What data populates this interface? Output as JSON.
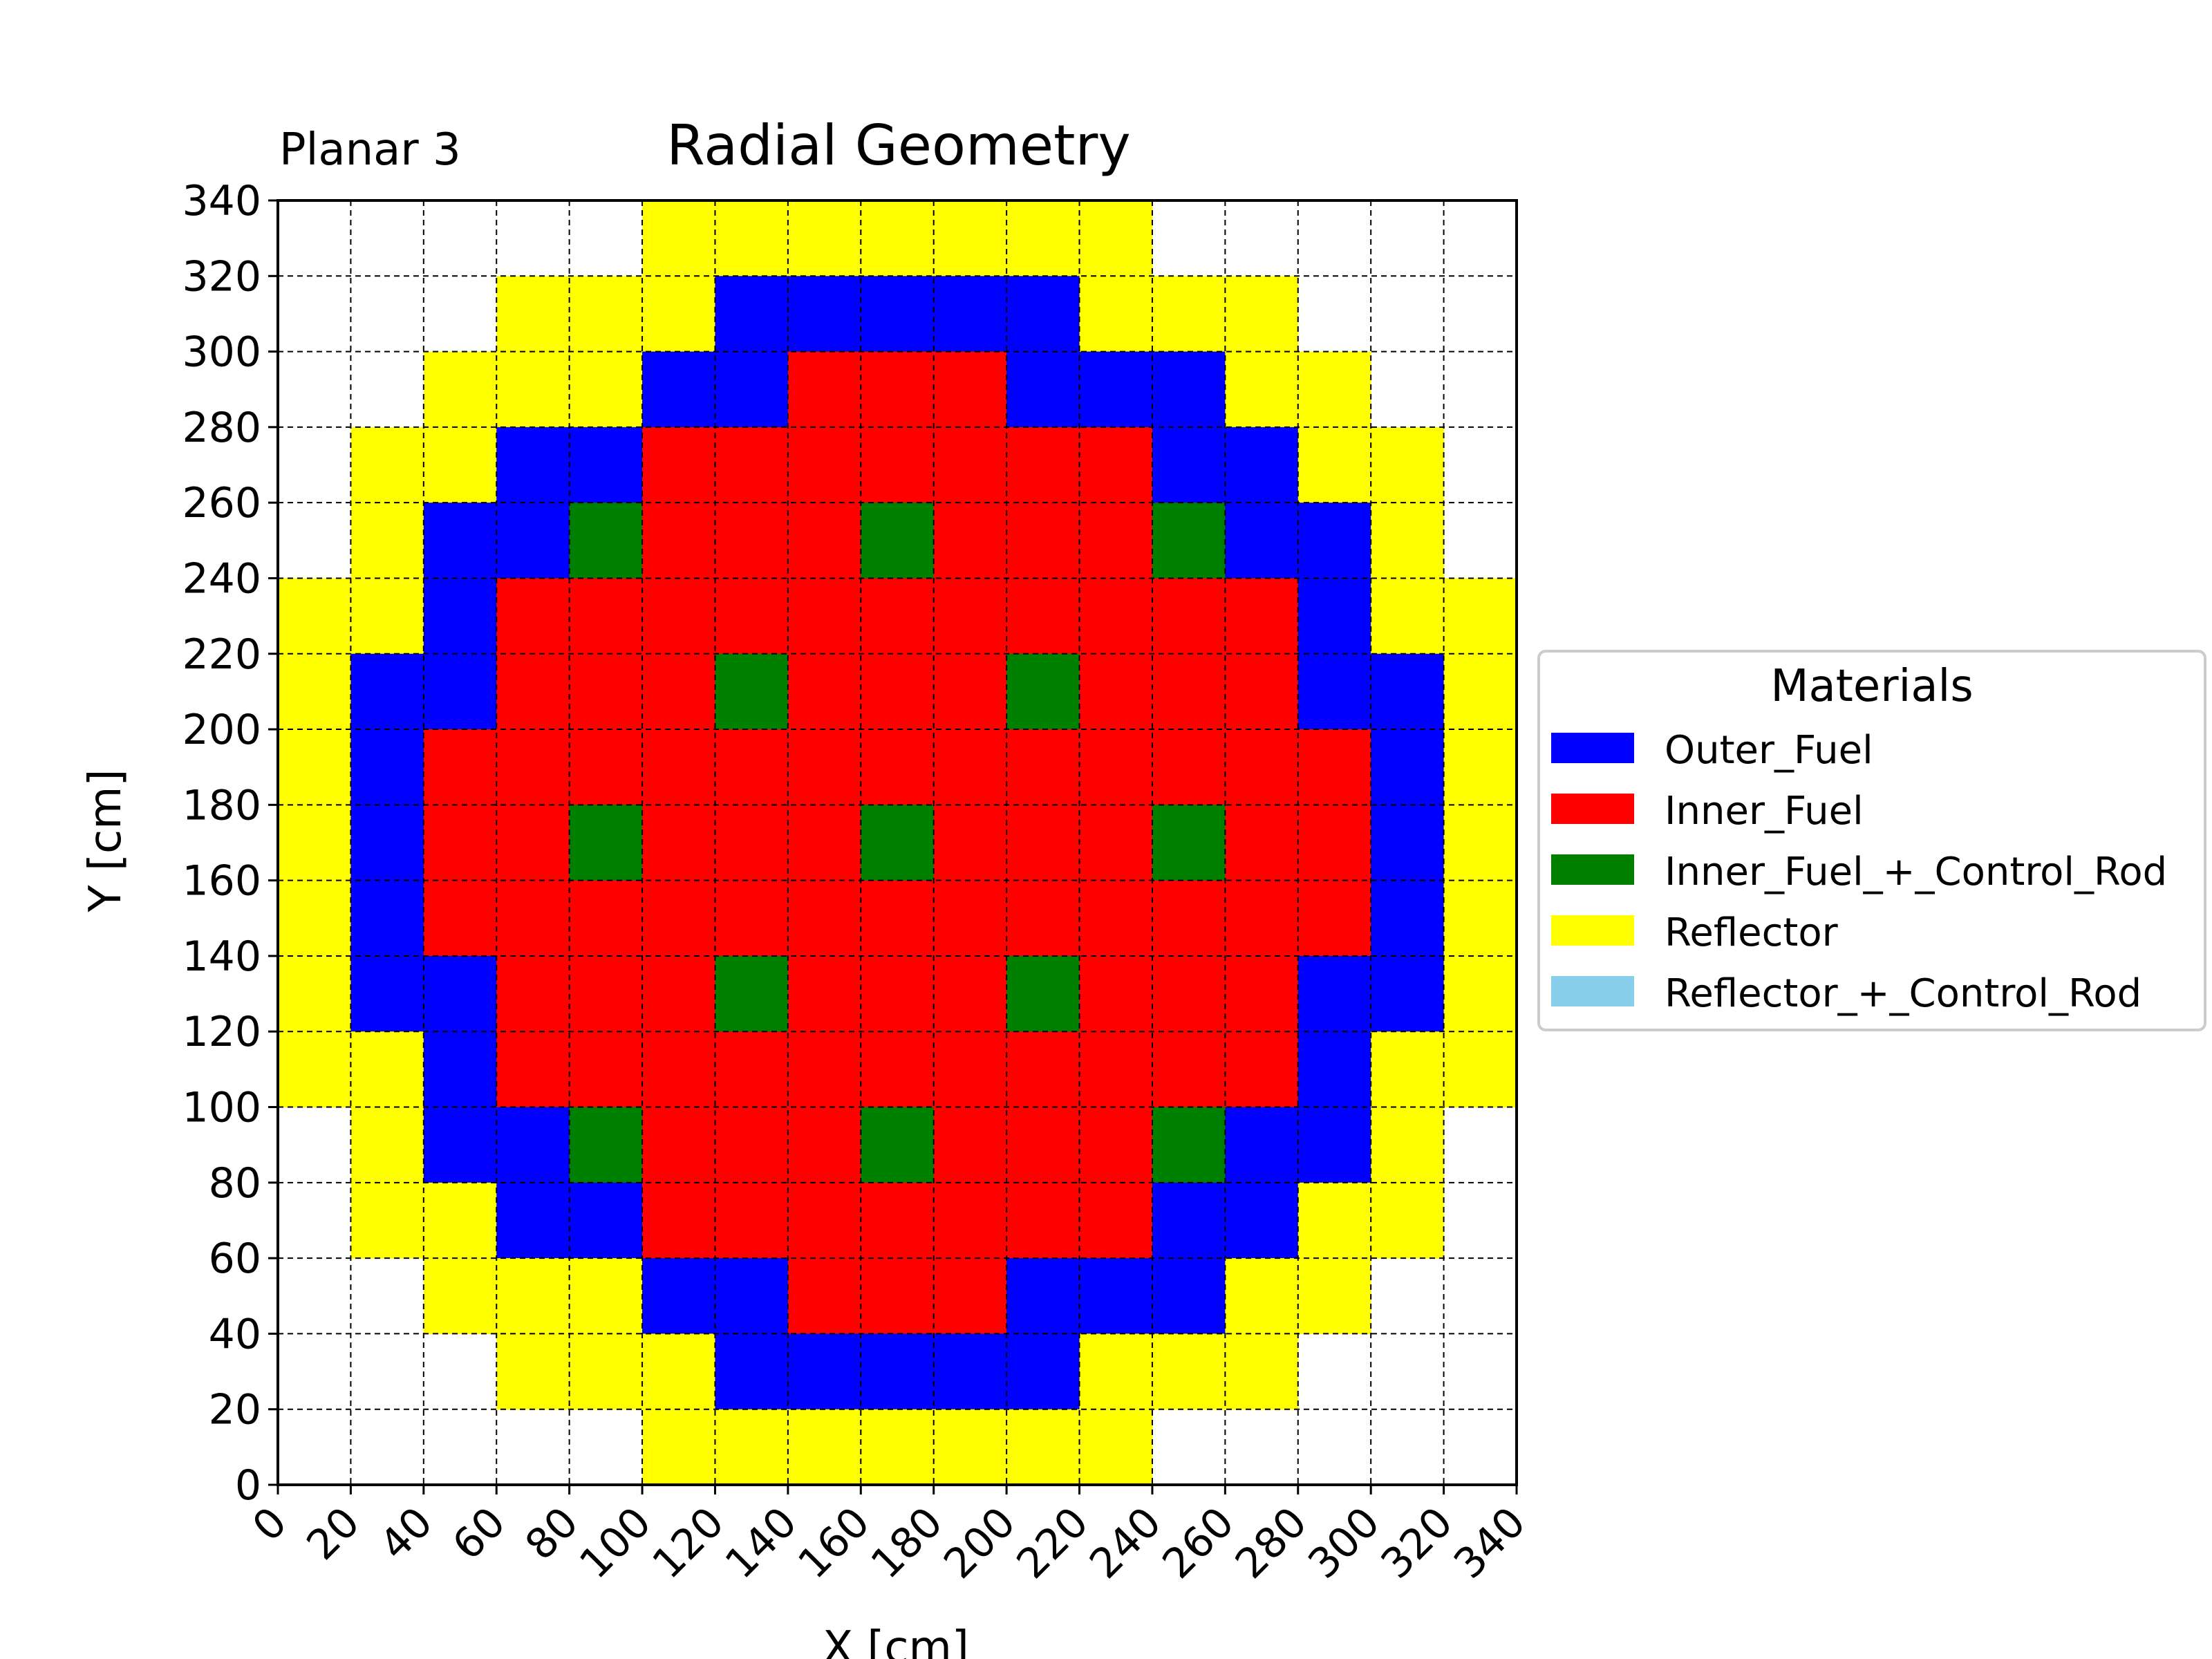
{
  "chart_data": {
    "type": "heatmap",
    "title": "Radial Geometry",
    "subtitle": "Planar 3",
    "xlabel": "X [cm]",
    "ylabel": "Y [cm]",
    "xlim": [
      0,
      340
    ],
    "ylim": [
      0,
      340
    ],
    "cell_size": 20,
    "xticks": [
      0,
      20,
      40,
      60,
      80,
      100,
      120,
      140,
      160,
      180,
      200,
      220,
      240,
      260,
      280,
      300,
      320,
      340
    ],
    "yticks": [
      0,
      20,
      40,
      60,
      80,
      100,
      120,
      140,
      160,
      180,
      200,
      220,
      240,
      260,
      280,
      300,
      320,
      340
    ],
    "grid": true,
    "legend": {
      "title": "Materials",
      "placement": "right",
      "entries": [
        {
          "key": "O",
          "label": "Outer_Fuel",
          "color": "#0000ff"
        },
        {
          "key": "I",
          "label": "Inner_Fuel",
          "color": "#ff0000"
        },
        {
          "key": "C",
          "label": "Inner_Fuel_+_Control_Rod",
          "color": "#008000"
        },
        {
          "key": "R",
          "label": "Reflector",
          "color": "#ffff00"
        },
        {
          "key": "Q",
          "label": "Reflector_+_Control_Rod",
          "color": "#87ceeb"
        }
      ]
    },
    "rows_top_to_bottom": [
      ".....RRRRRRR.....",
      "...RRROOOOORRR...",
      "..RRROOIIIOOORR..",
      ".RROOIIIIIIIOORR.",
      ".ROOCIIICIIICOOR.",
      "RROIIIIIIIIIIIORR",
      "ROOIIICIIICIIIOOR",
      "ROIIIIIIIIIIIIIOR",
      "ROIICIIICIIICIIOR",
      "ROIIIIIIIIIIIIIOR",
      "ROOIIICIIICIIIOOR",
      "RROIIIIIIIIIIIORR",
      ".ROOCIIICIIICOOR.",
      ".RROOIIIIIIIOORR.",
      "..RRROOIIIOOORR..",
      "...RRROOOOORRR...",
      ".....RRRRRRR....."
    ]
  }
}
